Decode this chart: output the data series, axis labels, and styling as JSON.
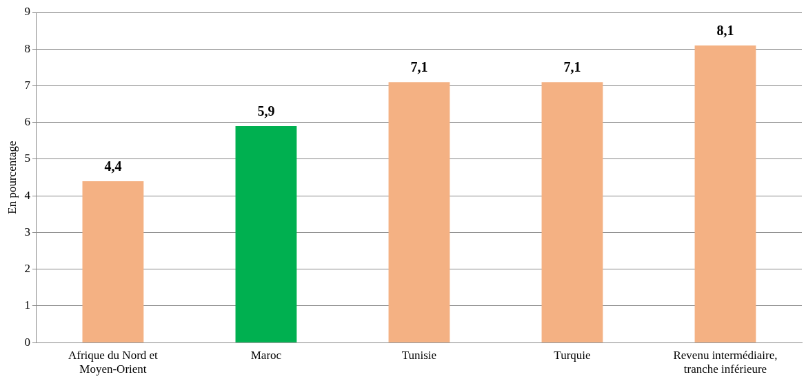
{
  "chart_data": {
    "type": "bar",
    "ylabel": "En pourcentage",
    "categories": [
      "Afrique du Nord et Moyen-Orient",
      "Maroc",
      "Tunisie",
      "Turquie",
      "Revenu intermédiaire, tranche inférieure"
    ],
    "values": [
      4.4,
      5.9,
      7.1,
      7.1,
      8.1
    ],
    "value_labels": [
      "4,4",
      "5,9",
      "7,1",
      "7,1",
      "8,1"
    ],
    "colors": [
      "#f4b183",
      "#00b050",
      "#f4b183",
      "#f4b183",
      "#f4b183"
    ],
    "ylim": [
      0,
      9
    ],
    "yticks": [
      0,
      1,
      2,
      3,
      4,
      5,
      6,
      7,
      8,
      9
    ],
    "grid": "y",
    "legend": false
  }
}
